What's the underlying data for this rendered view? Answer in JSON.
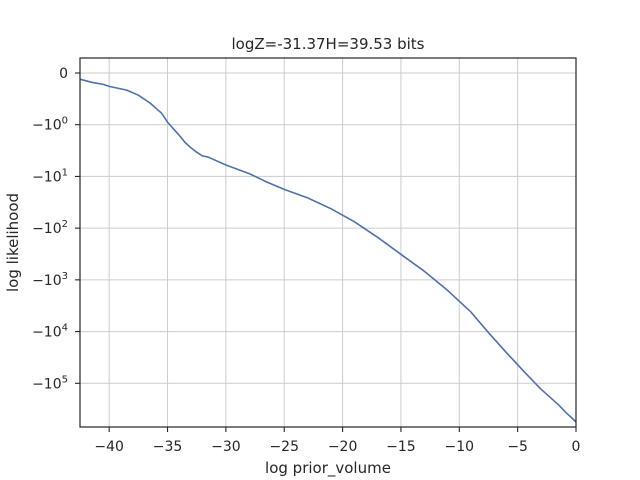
{
  "chart_data": {
    "type": "line",
    "title": "logZ=-31.37H=39.53 bits",
    "xlabel": "log prior_volume",
    "ylabel": "log likelihood",
    "xlim": [
      -42.5,
      0
    ],
    "ylim": [
      -700000,
      0
    ],
    "yscale": "symlog",
    "x_ticks": [
      {
        "value": -40,
        "label": "−40"
      },
      {
        "value": -35,
        "label": "−35"
      },
      {
        "value": -30,
        "label": "−30"
      },
      {
        "value": -25,
        "label": "−25"
      },
      {
        "value": -20,
        "label": "−20"
      },
      {
        "value": -15,
        "label": "−15"
      },
      {
        "value": -10,
        "label": "−10"
      },
      {
        "value": -5,
        "label": "−5"
      },
      {
        "value": 0,
        "label": "0"
      }
    ],
    "y_ticks": [
      {
        "value": 0,
        "base": "0",
        "exp": ""
      },
      {
        "value": -1,
        "base": "−10",
        "exp": "0"
      },
      {
        "value": -10,
        "base": "−10",
        "exp": "1"
      },
      {
        "value": -100,
        "base": "−10",
        "exp": "2"
      },
      {
        "value": -1000,
        "base": "−10",
        "exp": "3"
      },
      {
        "value": -10000,
        "base": "−10",
        "exp": "4"
      },
      {
        "value": -100000,
        "base": "−10",
        "exp": "5"
      }
    ],
    "grid": true,
    "color": "#4c72b0",
    "series": [
      {
        "x": [
          -42.5,
          -41.5,
          -40.5,
          -40.0,
          -38.5,
          -37.5,
          -36.5,
          -35.5,
          -35.0,
          -34.5,
          -34.0,
          -33.5,
          -33.0,
          -32.5,
          -32.0,
          -31.5,
          -30.0,
          -28.0,
          -26.5,
          -25.0,
          -23.0,
          -21.0,
          -19.0,
          -17.0,
          -15.0,
          -13.0,
          -11.0,
          -9.0,
          -7.5,
          -6.0,
          -4.5,
          -3.0,
          -1.5,
          -0.8,
          -0.3,
          0.0
        ],
        "y": [
          -0.12,
          -0.18,
          -0.22,
          -0.26,
          -0.33,
          -0.43,
          -0.58,
          -0.78,
          -0.95,
          -1.2,
          -1.6,
          -2.2,
          -2.8,
          -3.4,
          -4.0,
          -4.25,
          -6.0,
          -8.8,
          -12.8,
          -17.8,
          -26,
          -42,
          -75,
          -150,
          -320,
          -680,
          -1600,
          -4200,
          -10500,
          -25000,
          -58000,
          -130000,
          -260000,
          -380000,
          -480000,
          -560000
        ]
      }
    ]
  }
}
